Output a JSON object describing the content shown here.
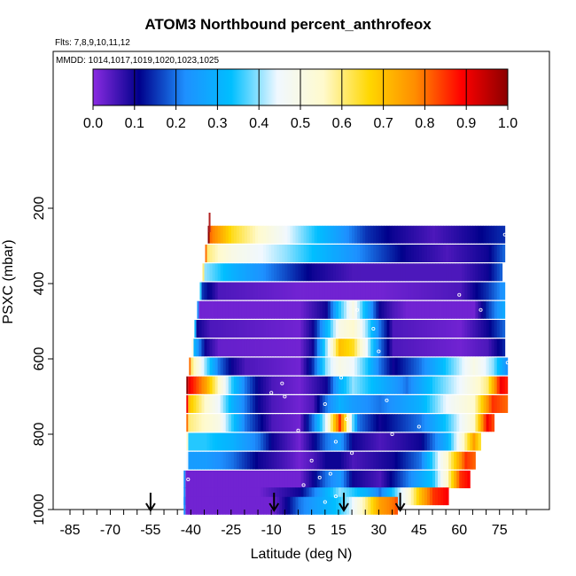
{
  "title": "ATOM3 Northbound percent_anthrofeox",
  "flights_label": "Flts: 7,8,9,10,11,12",
  "dates_label": "MMDD: 1014,1017,1019,1020,1023,1025",
  "colors": {
    "stops": [
      "#8a2be2",
      "#00008b",
      "#1e90ff",
      "#00bfff",
      "#f0f8ff",
      "#fffacd",
      "#ffd700",
      "#ff8c00",
      "#ff0000",
      "#8b0000"
    ],
    "arrow": "#000000",
    "marker": "#ffffff"
  },
  "chart_data": {
    "type": "heatmap",
    "title": "ATOM3 Northbound percent_anthrofeox",
    "xlabel": "Latitude (deg N)",
    "ylabel": "PSXC (mbar)",
    "xlim": [
      -85,
      85
    ],
    "ylim": [
      1000,
      0
    ],
    "x_ticks": [
      -85,
      -70,
      -55,
      -40,
      -25,
      -10,
      5,
      15,
      30,
      45,
      60,
      75
    ],
    "y_ticks": [
      200,
      400,
      600,
      800,
      1000
    ],
    "colorbar": {
      "range": [
        0,
        1
      ],
      "ticks": [
        "0.0",
        "0.1",
        "0.2",
        "0.3",
        "0.4",
        "0.5",
        "0.6",
        "0.7",
        "0.8",
        "0.9",
        "1.0"
      ]
    },
    "arrows_at_latitude": [
      -55,
      -9,
      17,
      38
    ],
    "pressure_bands": [
      {
        "pressure": 270,
        "lat_start": -33,
        "lat_end": 77,
        "values": [
          [
            -33,
            0.8
          ],
          [
            -25,
            0.65
          ],
          [
            -15,
            0.55
          ],
          [
            -5,
            0.45
          ],
          [
            5,
            0.35
          ],
          [
            15,
            0.25
          ],
          [
            25,
            0.15
          ],
          [
            35,
            0.1
          ],
          [
            50,
            0.05
          ],
          [
            65,
            0.1
          ],
          [
            77,
            0.15
          ]
        ]
      },
      {
        "pressure": 320,
        "lat_start": -34,
        "lat_end": 77,
        "values": [
          [
            -34,
            0.6
          ],
          [
            -25,
            0.5
          ],
          [
            -15,
            0.45
          ],
          [
            -5,
            0.4
          ],
          [
            10,
            0.3
          ],
          [
            25,
            0.2
          ],
          [
            40,
            0.1
          ],
          [
            55,
            0.05
          ],
          [
            70,
            0.1
          ],
          [
            77,
            0.2
          ]
        ]
      },
      {
        "pressure": 370,
        "lat_start": -35,
        "lat_end": 76,
        "values": [
          [
            -35,
            0.4
          ],
          [
            -25,
            0.3
          ],
          [
            -10,
            0.2
          ],
          [
            5,
            0.1
          ],
          [
            20,
            0.05
          ],
          [
            40,
            0.05
          ],
          [
            60,
            0.05
          ],
          [
            70,
            0.1
          ],
          [
            76,
            0.2
          ]
        ]
      },
      {
        "pressure": 420,
        "lat_start": -36,
        "lat_end": 77,
        "values": [
          [
            -36,
            0.15
          ],
          [
            -30,
            0.05
          ],
          [
            0,
            0.02
          ],
          [
            30,
            0.02
          ],
          [
            60,
            0.05
          ],
          [
            70,
            0.15
          ],
          [
            77,
            0.25
          ]
        ]
      },
      {
        "pressure": 470,
        "lat_start": -37,
        "lat_end": 77,
        "values": [
          [
            -37,
            0.02
          ],
          [
            0,
            0.02
          ],
          [
            10,
            0.1
          ],
          [
            15,
            0.35
          ],
          [
            20,
            0.5
          ],
          [
            25,
            0.3
          ],
          [
            30,
            0.1
          ],
          [
            35,
            0.05
          ],
          [
            40,
            0.02
          ],
          [
            65,
            0.02
          ],
          [
            70,
            0.15
          ],
          [
            77,
            0.3
          ]
        ]
      },
      {
        "pressure": 520,
        "lat_start": -38,
        "lat_end": 77,
        "values": [
          [
            -38,
            0.1
          ],
          [
            -33,
            0.05
          ],
          [
            0,
            0.02
          ],
          [
            5,
            0.1
          ],
          [
            10,
            0.3
          ],
          [
            15,
            0.5
          ],
          [
            20,
            0.55
          ],
          [
            25,
            0.4
          ],
          [
            30,
            0.2
          ],
          [
            35,
            0.05
          ],
          [
            60,
            0.02
          ],
          [
            70,
            0.1
          ],
          [
            77,
            0.2
          ]
        ]
      },
      {
        "pressure": 570,
        "lat_start": -39,
        "lat_end": 77,
        "values": [
          [
            -39,
            0.3
          ],
          [
            -35,
            0.1
          ],
          [
            -30,
            0.03
          ],
          [
            0,
            0.02
          ],
          [
            5,
            0.1
          ],
          [
            10,
            0.4
          ],
          [
            15,
            0.7
          ],
          [
            20,
            0.65
          ],
          [
            25,
            0.45
          ],
          [
            30,
            0.2
          ],
          [
            35,
            0.05
          ],
          [
            60,
            0.02
          ],
          [
            70,
            0.05
          ],
          [
            77,
            0.15
          ]
        ]
      },
      {
        "pressure": 620,
        "lat_start": -40,
        "lat_end": 78,
        "values": [
          [
            -40,
            0.6
          ],
          [
            -35,
            0.4
          ],
          [
            -30,
            0.2
          ],
          [
            -25,
            0.1
          ],
          [
            -20,
            0.05
          ],
          [
            0,
            0.02
          ],
          [
            5,
            0.15
          ],
          [
            10,
            0.4
          ],
          [
            15,
            0.5
          ],
          [
            20,
            0.45
          ],
          [
            25,
            0.35
          ],
          [
            30,
            0.2
          ],
          [
            35,
            0.1
          ],
          [
            45,
            0.2
          ],
          [
            55,
            0.35
          ],
          [
            65,
            0.5
          ],
          [
            72,
            0.4
          ],
          [
            78,
            0.2
          ]
        ]
      },
      {
        "pressure": 670,
        "lat_start": -41,
        "lat_end": 78,
        "values": [
          [
            -41,
            0.9
          ],
          [
            -35,
            0.75
          ],
          [
            -30,
            0.55
          ],
          [
            -25,
            0.35
          ],
          [
            -20,
            0.2
          ],
          [
            -15,
            0.1
          ],
          [
            -10,
            0.05
          ],
          [
            0,
            0.02
          ],
          [
            10,
            0.1
          ],
          [
            15,
            0.3
          ],
          [
            20,
            0.4
          ],
          [
            30,
            0.3
          ],
          [
            40,
            0.2
          ],
          [
            50,
            0.35
          ],
          [
            60,
            0.45
          ],
          [
            70,
            0.6
          ],
          [
            75,
            0.9
          ],
          [
            78,
            0.85
          ]
        ]
      },
      {
        "pressure": 720,
        "lat_start": -41,
        "lat_end": 78,
        "values": [
          [
            -41,
            0.7
          ],
          [
            -35,
            0.55
          ],
          [
            -30,
            0.45
          ],
          [
            -25,
            0.3
          ],
          [
            -20,
            0.2
          ],
          [
            -15,
            0.1
          ],
          [
            -10,
            0.05
          ],
          [
            0,
            0.02
          ],
          [
            5,
            0.05
          ],
          [
            10,
            0.2
          ],
          [
            15,
            0.3
          ],
          [
            20,
            0.25
          ],
          [
            30,
            0.2
          ],
          [
            45,
            0.3
          ],
          [
            55,
            0.45
          ],
          [
            65,
            0.55
          ],
          [
            72,
            0.85
          ],
          [
            78,
            0.8
          ]
        ]
      },
      {
        "pressure": 770,
        "lat_start": -41,
        "lat_end": 73,
        "values": [
          [
            -41,
            0.6
          ],
          [
            -35,
            0.55
          ],
          [
            -30,
            0.5
          ],
          [
            -25,
            0.35
          ],
          [
            -20,
            0.2
          ],
          [
            -10,
            0.05
          ],
          [
            0,
            0.02
          ],
          [
            5,
            0.2
          ],
          [
            10,
            0.45
          ],
          [
            15,
            0.85
          ],
          [
            18,
            0.55
          ],
          [
            22,
            0.2
          ],
          [
            30,
            0.1
          ],
          [
            45,
            0.2
          ],
          [
            55,
            0.35
          ],
          [
            65,
            0.55
          ],
          [
            70,
            0.9
          ],
          [
            73,
            0.8
          ]
        ]
      },
      {
        "pressure": 820,
        "lat_start": -41,
        "lat_end": 68,
        "values": [
          [
            -41,
            0.35
          ],
          [
            -35,
            0.35
          ],
          [
            -25,
            0.3
          ],
          [
            -15,
            0.2
          ],
          [
            -10,
            0.1
          ],
          [
            0,
            0.02
          ],
          [
            5,
            0.1
          ],
          [
            10,
            0.2
          ],
          [
            15,
            0.25
          ],
          [
            20,
            0.1
          ],
          [
            30,
            0.05
          ],
          [
            45,
            0.1
          ],
          [
            55,
            0.3
          ],
          [
            60,
            0.5
          ],
          [
            65,
            0.75
          ],
          [
            68,
            0.6
          ]
        ]
      },
      {
        "pressure": 870,
        "lat_start": -41,
        "lat_end": 66,
        "values": [
          [
            -41,
            0.25
          ],
          [
            -35,
            0.25
          ],
          [
            -25,
            0.2
          ],
          [
            -15,
            0.1
          ],
          [
            -5,
            0.05
          ],
          [
            0,
            0.02
          ],
          [
            5,
            0.05
          ],
          [
            10,
            0.1
          ],
          [
            15,
            0.1
          ],
          [
            20,
            0.05
          ],
          [
            35,
            0.1
          ],
          [
            45,
            0.2
          ],
          [
            55,
            0.55
          ],
          [
            62,
            0.85
          ],
          [
            66,
            0.8
          ]
        ]
      },
      {
        "pressure": 920,
        "lat_start": -42,
        "lat_end": 64,
        "values": [
          [
            -42,
            0.02
          ],
          [
            0,
            0.02
          ],
          [
            5,
            0.1
          ],
          [
            10,
            0.2
          ],
          [
            15,
            0.25
          ],
          [
            20,
            0.1
          ],
          [
            30,
            0.05
          ],
          [
            40,
            0.2
          ],
          [
            50,
            0.35
          ],
          [
            55,
            0.55
          ],
          [
            60,
            0.85
          ],
          [
            64,
            0.9
          ]
        ]
      },
      {
        "pressure": 965,
        "lat_start": -42,
        "lat_end": 56,
        "values": [
          [
            -42,
            0.02
          ],
          [
            -15,
            0.02
          ],
          [
            -10,
            0.05
          ],
          [
            0,
            0.1
          ],
          [
            5,
            0.2
          ],
          [
            10,
            0.3
          ],
          [
            15,
            0.4
          ],
          [
            20,
            0.35
          ],
          [
            25,
            0.3
          ],
          [
            30,
            0.2
          ],
          [
            35,
            0.35
          ],
          [
            40,
            0.5
          ],
          [
            45,
            0.7
          ],
          [
            50,
            0.85
          ],
          [
            56,
            0.9
          ]
        ]
      },
      {
        "pressure": 990,
        "lat_start": -42,
        "lat_end": 37,
        "values": [
          [
            -42,
            0.02
          ],
          [
            -10,
            0.02
          ],
          [
            -5,
            0.1
          ],
          [
            0,
            0.2
          ],
          [
            5,
            0.25
          ],
          [
            10,
            0.3
          ],
          [
            15,
            0.35
          ],
          [
            20,
            0.45
          ],
          [
            25,
            0.6
          ],
          [
            30,
            0.75
          ],
          [
            35,
            0.8
          ],
          [
            37,
            0.85
          ]
        ]
      }
    ]
  }
}
